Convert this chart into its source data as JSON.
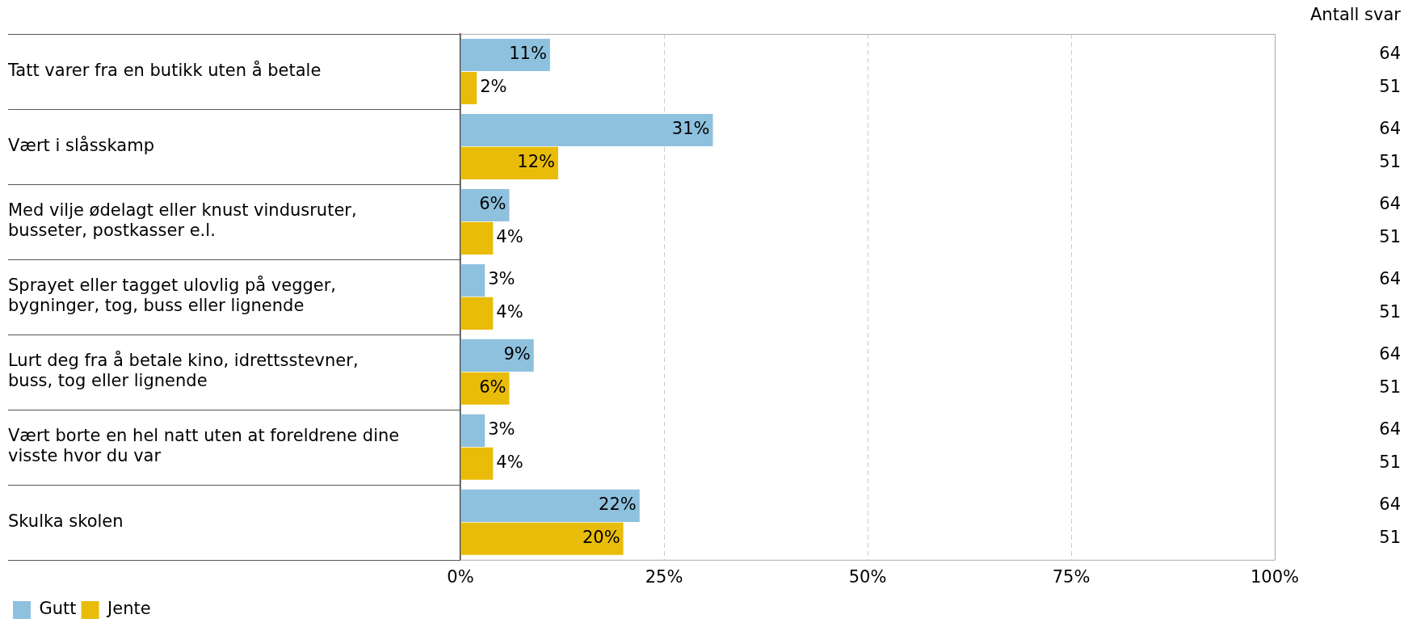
{
  "chart_data": {
    "type": "bar",
    "orientation": "horizontal",
    "categories": [
      "Tatt varer fra en butikk uten å betale",
      "Vært i slåsskamp",
      "Med vilje ødelagt eller knust vindusruter, busseter, postkasser e.l.",
      "Sprayet eller tagget ulovlig på vegger, bygninger, tog, buss eller lignende",
      "Lurt deg fra å betale kino, idrettsstevner, buss, tog eller lignende",
      "Vært borte en hel natt uten at foreldrene dine visste hvor du var",
      "Skulka skolen"
    ],
    "series": [
      {
        "name": "Gutt",
        "color": "#8ec1de",
        "values": [
          11,
          31,
          6,
          3,
          9,
          3,
          22
        ],
        "value_labels": [
          "11%",
          "31%",
          "6%",
          "3%",
          "9%",
          "3%",
          "22%"
        ]
      },
      {
        "name": "Jente",
        "color": "#e9bc0a",
        "values": [
          2,
          12,
          4,
          4,
          6,
          4,
          20
        ],
        "value_labels": [
          "2%",
          "12%",
          "4%",
          "4%",
          "6%",
          "4%",
          "20%"
        ]
      }
    ],
    "xlim": [
      0,
      100
    ],
    "xticks": [
      {
        "value": 0,
        "label": "0%"
      },
      {
        "value": 25,
        "label": "25%"
      },
      {
        "value": 50,
        "label": "50%"
      },
      {
        "value": 75,
        "label": "75%"
      },
      {
        "value": 100,
        "label": "100%"
      }
    ],
    "grid": "x",
    "legend": "bottom",
    "annotations": [
      "Antall svar",
      "64",
      "51",
      "64",
      "51",
      "64",
      "51",
      "64",
      "51",
      "64",
      "51",
      "64",
      "51",
      "64",
      "51"
    ]
  }
}
